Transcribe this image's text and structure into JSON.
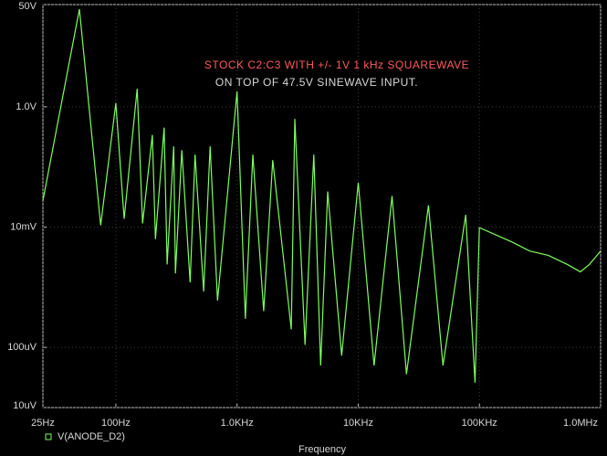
{
  "chart_data": {
    "type": "line",
    "annotations": [
      {
        "text": "STOCK C2:C3 WITH +/- 1V 1 kHz SQUAREWAVE",
        "color": "#ff5a5a"
      },
      {
        "text": "ON TOP OF 47.5V SINEWAVE INPUT.",
        "color": "#d8d8d8"
      }
    ],
    "x_label": "Frequency",
    "x_scale": "log",
    "y_scale": "log",
    "xlim": [
      25,
      1000000
    ],
    "ylim": [
      1e-05,
      50
    ],
    "xticks": [
      {
        "value": 25,
        "label": "25Hz"
      },
      {
        "value": 100,
        "label": "100Hz"
      },
      {
        "value": 1000,
        "label": "1.0KHz"
      },
      {
        "value": 10000,
        "label": "10KHz"
      },
      {
        "value": 100000,
        "label": "100KHz"
      },
      {
        "value": 1000000,
        "label": "1.0MHz"
      }
    ],
    "yticks": [
      {
        "value": 1e-05,
        "label": "10uV"
      },
      {
        "value": 0.0001,
        "label": "100uV"
      },
      {
        "value": 0.01,
        "label": "10mV"
      },
      {
        "value": 1,
        "label": "1.0V"
      },
      {
        "value": 50,
        "label": "50V"
      }
    ],
    "grid": true,
    "series": [
      {
        "name": "V(ANODE_D2)",
        "color": "#7dff5c",
        "x": [
          25,
          50,
          75,
          100,
          117,
          150,
          166,
          200,
          212,
          250,
          265,
          300,
          310,
          350,
          410,
          450,
          530,
          600,
          690,
          1000,
          1170,
          1350,
          1660,
          1970,
          2800,
          3000,
          3640,
          4300,
          4900,
          5600,
          7300,
          10000,
          13500,
          19000,
          25000,
          38000,
          50000,
          77000,
          92000,
          100000,
          184000,
          260000,
          370000,
          530000,
          680000,
          810000,
          1000000
        ],
        "values": [
          0.0275,
          42,
          0.0107,
          1.15,
          0.0137,
          2.0,
          0.0115,
          0.34,
          0.0063,
          0.45,
          0.0024,
          0.22,
          0.0017,
          0.19,
          0.0012,
          0.16,
          0.00085,
          0.22,
          0.0006,
          1.8,
          0.0003,
          0.16,
          0.0004,
          0.13,
          0.0002,
          0.63,
          0.00011,
          0.16,
          5e-05,
          0.039,
          7.3e-05,
          0.055,
          5e-05,
          0.033,
          3.6e-05,
          0.023,
          5e-05,
          0.016,
          2.6e-05,
          0.0098,
          0.0057,
          0.004,
          0.0034,
          0.0024,
          0.0018,
          0.0024,
          0.004
        ]
      }
    ]
  }
}
